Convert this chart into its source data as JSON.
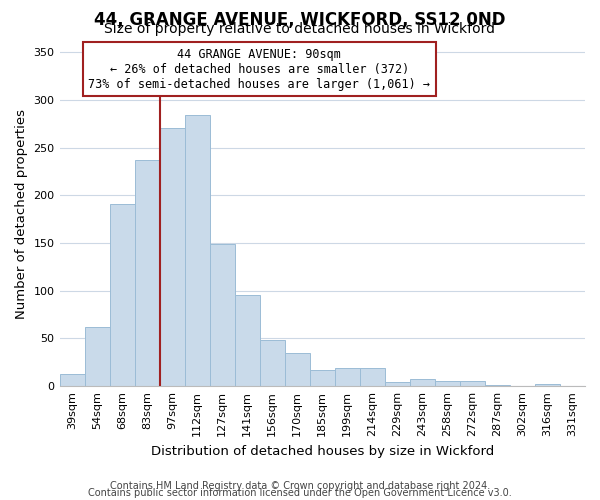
{
  "title_line1": "44, GRANGE AVENUE, WICKFORD, SS12 0ND",
  "title_line2": "Size of property relative to detached houses in Wickford",
  "xlabel": "Distribution of detached houses by size in Wickford",
  "ylabel": "Number of detached properties",
  "bar_labels": [
    "39sqm",
    "54sqm",
    "68sqm",
    "83sqm",
    "97sqm",
    "112sqm",
    "127sqm",
    "141sqm",
    "156sqm",
    "170sqm",
    "185sqm",
    "199sqm",
    "214sqm",
    "229sqm",
    "243sqm",
    "258sqm",
    "272sqm",
    "287sqm",
    "302sqm",
    "316sqm",
    "331sqm"
  ],
  "bar_values": [
    13,
    62,
    191,
    237,
    270,
    284,
    149,
    96,
    48,
    35,
    17,
    19,
    19,
    4,
    8,
    5,
    5,
    1,
    0,
    2,
    0
  ],
  "bar_color": "#c9daea",
  "bar_edge_color": "#9bbcd6",
  "vline_bar_index": 4,
  "vline_color": "#a02020",
  "annotation_title": "44 GRANGE AVENUE: 90sqm",
  "annotation_line1": "← 26% of detached houses are smaller (372)",
  "annotation_line2": "73% of semi-detached houses are larger (1,061) →",
  "annotation_box_color": "#ffffff",
  "annotation_box_edge": "#a02020",
  "ylim": [
    0,
    360
  ],
  "yticks": [
    0,
    50,
    100,
    150,
    200,
    250,
    300,
    350
  ],
  "footer_line1": "Contains HM Land Registry data © Crown copyright and database right 2024.",
  "footer_line2": "Contains public sector information licensed under the Open Government Licence v3.0.",
  "background_color": "#ffffff",
  "grid_color": "#cdd8e5",
  "title_fontsize": 12,
  "subtitle_fontsize": 10,
  "axis_label_fontsize": 9.5,
  "tick_fontsize": 8,
  "annotation_fontsize": 8.5,
  "footer_fontsize": 7
}
